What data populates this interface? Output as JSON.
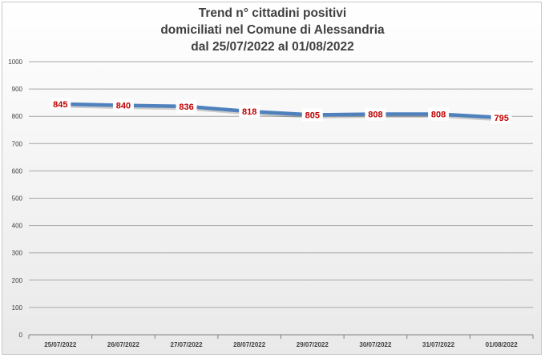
{
  "chart_data": {
    "type": "line",
    "title": [
      "Trend n° cittadini positivi",
      "domiciliati nel Comune di Alessandria",
      "dal 25/07/2022 al 01/08/2022"
    ],
    "categories": [
      "25/07/2022",
      "26/07/2022",
      "27/07/2022",
      "28/07/2022",
      "29/07/2022",
      "30/07/2022",
      "31/07/2022",
      "01/08/2022"
    ],
    "values": [
      845,
      840,
      836,
      818,
      805,
      808,
      808,
      795
    ],
    "data_labels": [
      "845",
      "840",
      "836",
      "818",
      "805",
      "808",
      "808",
      "795"
    ],
    "y_ticks": [
      "0",
      "100",
      "200",
      "300",
      "400",
      "500",
      "600",
      "700",
      "800",
      "900",
      "1000"
    ],
    "ylim": [
      0,
      1000
    ],
    "grid": true,
    "legend": "none",
    "colors": {
      "line": "#4f81bd",
      "label_text": "#c00000",
      "label_bg": "#ffffff",
      "grid": "#a6a6a6",
      "axis_text": "#404040"
    }
  }
}
